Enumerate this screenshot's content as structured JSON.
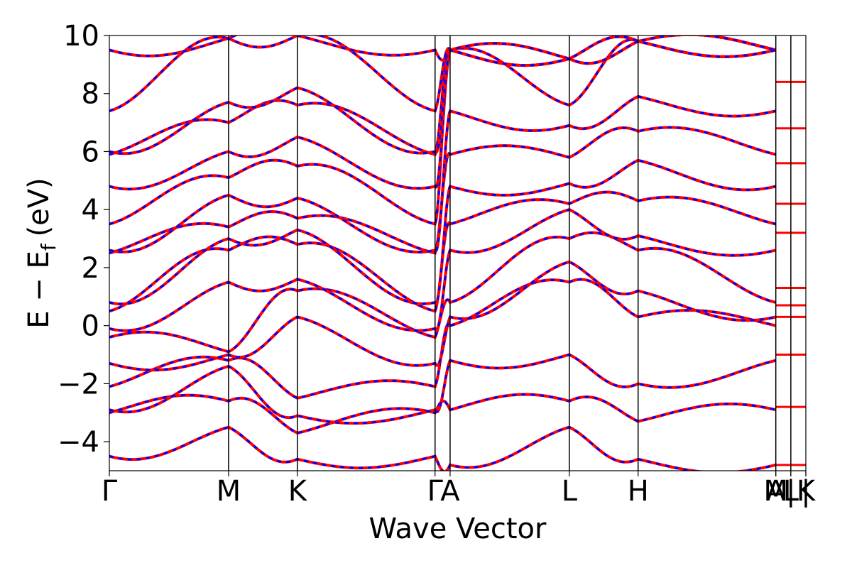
{
  "chart_data": {
    "type": "line",
    "title": "",
    "xlabel": "Wave Vector",
    "ylabel_main": "E − E",
    "ylabel_sub": "f",
    "ylabel_unit": "(eV)",
    "ylim": [
      -5,
      10
    ],
    "yticks": [
      {
        "value": -4,
        "label": "−4"
      },
      {
        "value": -2,
        "label": "−2"
      },
      {
        "value": 0,
        "label": "0"
      },
      {
        "value": 2,
        "label": "2"
      },
      {
        "value": 4,
        "label": "4"
      },
      {
        "value": 6,
        "label": "6"
      },
      {
        "value": 8,
        "label": "8"
      },
      {
        "value": 10,
        "label": "10"
      }
    ],
    "kpath": [
      {
        "label": "Γ",
        "x": 0.0
      },
      {
        "label": "M",
        "x": 1.0
      },
      {
        "label": "K",
        "x": 1.577
      },
      {
        "label": "Γ",
        "x": 2.732
      },
      {
        "label": "A",
        "x": 2.858
      },
      {
        "label": "L",
        "x": 3.858
      },
      {
        "label": "H",
        "x": 4.435
      },
      {
        "label": "A",
        "x": 5.59
      },
      {
        "label": "M",
        "x": 5.59
      },
      {
        "label": "|",
        "x": 5.716
      },
      {
        "label": "L",
        "x": 5.716
      },
      {
        "label": "|",
        "x": 5.842
      },
      {
        "label": "K",
        "x": 5.842
      }
    ],
    "xlim": [
      0.0,
      5.842
    ],
    "series": [
      {
        "color": "#ff0000",
        "style": "solid"
      },
      {
        "color": "#0000ff",
        "style": "dashed"
      }
    ],
    "bands_at_high_symmetry_points": {
      "Γ": [
        -4.5,
        -3.0,
        -2.9,
        -2.1,
        -1.3,
        -0.4,
        -0.1,
        0.5,
        0.8,
        2.5,
        2.6,
        3.5,
        4.8,
        5.9,
        6.0,
        7.4,
        9.5
      ],
      "M": [
        -3.5,
        -2.6,
        -1.4,
        -1.2,
        -1.0,
        -0.9,
        1.5,
        2.6,
        3.0,
        3.4,
        4.5,
        5.1,
        6.0,
        7.0,
        7.7,
        9.9
      ],
      "K": [
        -4.6,
        -3.7,
        -3.1,
        -2.5,
        0.3,
        1.2,
        1.6,
        2.8,
        3.3,
        3.7,
        4.4,
        5.5,
        6.5,
        7.6,
        8.2,
        10.0
      ],
      "A": [
        -4.8,
        -2.9,
        -1.2,
        0.0,
        0.3,
        0.8,
        2.6,
        3.5,
        4.8,
        5.9,
        7.4,
        9.5
      ],
      "L": [
        -3.5,
        -2.6,
        -1.0,
        1.5,
        2.2,
        3.0,
        4.0,
        4.2,
        4.9,
        5.8,
        6.9,
        7.6,
        9.2
      ],
      "H": [
        -4.6,
        -3.3,
        -2.0,
        0.3,
        1.2,
        2.6,
        3.1,
        4.3,
        5.7,
        6.7,
        7.9,
        9.8
      ]
    }
  }
}
